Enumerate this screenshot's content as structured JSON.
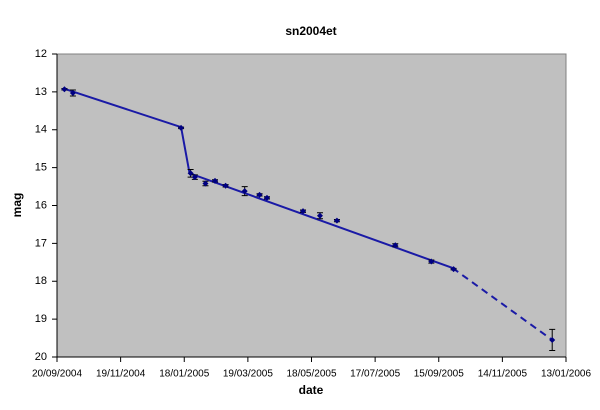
{
  "chart_data": {
    "type": "scatter",
    "title": "sn2004et",
    "x_label": "date",
    "y_label": "mag",
    "x": [
      "2004-09-27",
      "2004-10-05",
      "2005-01-15",
      "2005-01-24",
      "2005-01-28",
      "2005-02-07",
      "2005-02-16",
      "2005-02-26",
      "2005-03-16",
      "2005-03-30",
      "2005-04-06",
      "2005-05-10",
      "2005-05-26",
      "2005-06-11",
      "2005-08-05",
      "2005-09-08",
      "2005-09-29",
      "2005-12-31"
    ],
    "values": [
      12.93,
      13.03,
      13.95,
      15.15,
      15.25,
      15.42,
      15.35,
      15.48,
      15.62,
      15.72,
      15.8,
      16.15,
      16.27,
      16.4,
      17.05,
      17.48,
      17.68,
      19.55
    ],
    "errors": [
      0.02,
      0.08,
      0.02,
      0.1,
      0.06,
      0.06,
      0.03,
      0.03,
      0.12,
      0.03,
      0.03,
      0.03,
      0.08,
      0.03,
      0.04,
      0.04,
      0.02,
      0.28
    ],
    "color": "#000080",
    "fit": {
      "x": [
        "2004-09-27",
        "2005-01-15",
        "2005-01-23",
        "2005-09-28"
      ],
      "values": [
        12.92,
        13.93,
        15.15,
        17.65
      ],
      "color": "#1a1aa6",
      "dashed": false
    },
    "extrapolation": {
      "x": [
        "2005-09-28",
        "2005-12-31"
      ],
      "values": [
        17.65,
        19.55
      ],
      "color": "#1a1aa6",
      "dashed": true
    },
    "xlim": [
      "2004-09-20",
      "2006-01-13"
    ],
    "xticks": [
      {
        "value": "2004-09-20",
        "label": "20/09/2004"
      },
      {
        "value": "2004-11-19",
        "label": "19/11/2004"
      },
      {
        "value": "2005-01-18",
        "label": "18/01/2005"
      },
      {
        "value": "2005-03-19",
        "label": "19/03/2005"
      },
      {
        "value": "2005-05-18",
        "label": "18/05/2005"
      },
      {
        "value": "2005-07-17",
        "label": "17/07/2005"
      },
      {
        "value": "2005-09-15",
        "label": "15/09/2005"
      },
      {
        "value": "2005-11-14",
        "label": "14/11/2005"
      },
      {
        "value": "2006-01-13",
        "label": "13/01/2006"
      }
    ],
    "ylim": [
      12,
      20
    ],
    "yticks": [
      12,
      13,
      14,
      15,
      16,
      17,
      18,
      19,
      20
    ],
    "y_inverted": true,
    "plot_background": "#c0c0c0",
    "grid": false
  }
}
